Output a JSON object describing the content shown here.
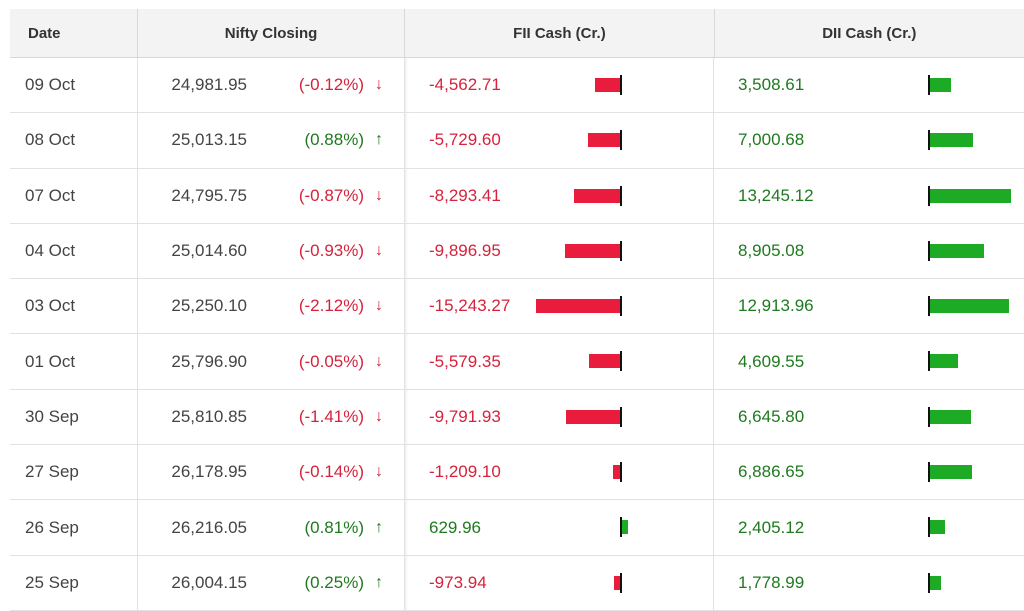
{
  "headers": {
    "date": "Date",
    "nifty": "Nifty Closing",
    "fii": "FII Cash (Cr.)",
    "dii": "DII Cash (Cr.)"
  },
  "colors": {
    "negative": "#ea1c3e",
    "positive": "#1daa25",
    "neg_text": "#d6223c",
    "pos_text": "#1f7a1f"
  },
  "rows": [
    {
      "date": "09 Oct",
      "close": "24,981.95",
      "change": "(-0.12%)",
      "arrow": "↓",
      "dir": "down",
      "fii": "-4,562.71",
      "fii_num": -4562.71,
      "dii": "3,508.61",
      "dii_num": 3508.61
    },
    {
      "date": "08 Oct",
      "close": "25,013.15",
      "change": "(0.88%)",
      "arrow": "↑",
      "dir": "up",
      "fii": "-5,729.60",
      "fii_num": -5729.6,
      "dii": "7,000.68",
      "dii_num": 7000.68
    },
    {
      "date": "07 Oct",
      "close": "24,795.75",
      "change": "(-0.87%)",
      "arrow": "↓",
      "dir": "down",
      "fii": "-8,293.41",
      "fii_num": -8293.41,
      "dii": "13,245.12",
      "dii_num": 13245.12
    },
    {
      "date": "04 Oct",
      "close": "25,014.60",
      "change": "(-0.93%)",
      "arrow": "↓",
      "dir": "down",
      "fii": "-9,896.95",
      "fii_num": -9896.95,
      "dii": "8,905.08",
      "dii_num": 8905.08
    },
    {
      "date": "03 Oct",
      "close": "25,250.10",
      "change": "(-2.12%)",
      "arrow": "↓",
      "dir": "down",
      "fii": "-15,243.27",
      "fii_num": -15243.27,
      "dii": "12,913.96",
      "dii_num": 12913.96
    },
    {
      "date": "01 Oct",
      "close": "25,796.90",
      "change": "(-0.05%)",
      "arrow": "↓",
      "dir": "down",
      "fii": "-5,579.35",
      "fii_num": -5579.35,
      "dii": "4,609.55",
      "dii_num": 4609.55
    },
    {
      "date": "30 Sep",
      "close": "25,810.85",
      "change": "(-1.41%)",
      "arrow": "↓",
      "dir": "down",
      "fii": "-9,791.93",
      "fii_num": -9791.93,
      "dii": "6,645.80",
      "dii_num": 6645.8
    },
    {
      "date": "27 Sep",
      "close": "26,178.95",
      "change": "(-0.14%)",
      "arrow": "↓",
      "dir": "down",
      "fii": "-1,209.10",
      "fii_num": -1209.1,
      "dii": "6,886.65",
      "dii_num": 6886.65
    },
    {
      "date": "26 Sep",
      "close": "26,216.05",
      "change": "(0.81%)",
      "arrow": "↑",
      "dir": "up",
      "fii": "629.96",
      "fii_num": 629.96,
      "dii": "2,405.12",
      "dii_num": 2405.12
    },
    {
      "date": "25 Sep",
      "close": "26,004.15",
      "change": "(0.25%)",
      "arrow": "↑",
      "dir": "up",
      "fii": "-973.94",
      "fii_num": -973.94,
      "dii": "1,778.99",
      "dii_num": 1778.99
    }
  ]
}
